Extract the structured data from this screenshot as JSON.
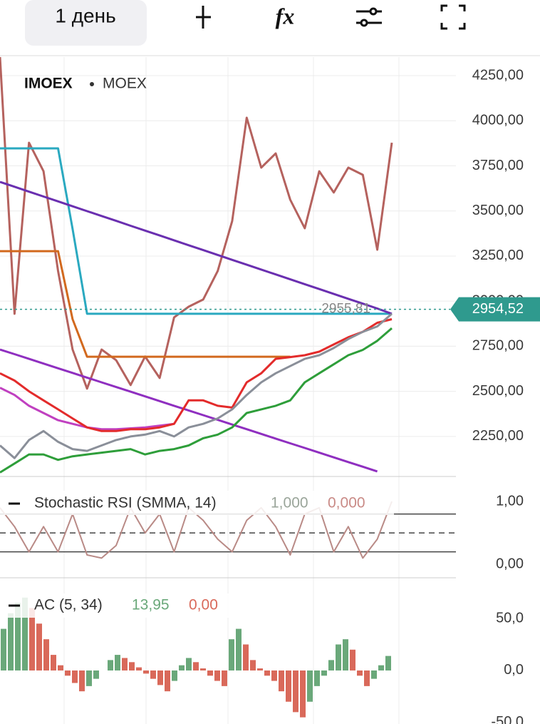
{
  "toolbar": {
    "timeframe": "1 день",
    "functions": "fx"
  },
  "chart_data": [
    {
      "type": "line",
      "title": "IMOEX",
      "subtitle": "MOEX",
      "ylim": [
        2028,
        4353
      ],
      "yticks": [
        {
          "value": 2250,
          "label": "2250,00"
        },
        {
          "value": 2500,
          "label": "2500,00"
        },
        {
          "value": 2750,
          "label": "2750,00"
        },
        {
          "value": 3000,
          "label": "3000,00"
        },
        {
          "value": 3250,
          "label": "3250,00"
        },
        {
          "value": 3500,
          "label": "3500,00"
        },
        {
          "value": 3750,
          "label": "3750,00"
        },
        {
          "value": 4000,
          "label": "4000,00"
        },
        {
          "value": 4250,
          "label": "4250,00"
        }
      ],
      "grid": true,
      "last_price": {
        "value": 2954.52,
        "label": "2954,52",
        "color": "#2f9a8e"
      },
      "marker_price": {
        "value": 2955.81,
        "label": "2955,81"
      },
      "series": [
        {
          "color": "#b5625e",
          "values": [
            4353,
            2930,
            3878,
            3720,
            3167,
            2732,
            2515,
            2732,
            2673,
            2535,
            2693,
            2574,
            2910,
            2969,
            3009,
            3167,
            3444,
            4017,
            3740,
            3819,
            3562,
            3404,
            3720,
            3602,
            3740,
            3700,
            3285,
            3878
          ]
        },
        {
          "color": "#2aa9c0",
          "values": [
            3847,
            3847,
            3847,
            3847,
            3847,
            3400,
            2930,
            2930,
            2930,
            2930,
            2930,
            2930,
            2930,
            2930,
            2930,
            2930,
            2930,
            2930,
            2930,
            2930,
            2930,
            2930,
            2930,
            2930,
            2930,
            2930,
            2930,
            2930
          ]
        },
        {
          "color": "#d2691e",
          "values": [
            3277,
            3277,
            3277,
            3277,
            3277,
            2900,
            2692,
            2692,
            2692,
            2692,
            2692,
            2692,
            2692,
            2692,
            2692,
            2692,
            2692,
            2692,
            2692,
            2692,
            2692,
            null,
            null,
            null,
            null,
            null,
            null,
            null
          ]
        },
        {
          "color": "#6a2fb0",
          "values": [
            3661,
            3634,
            3607,
            3580,
            3553,
            3526,
            3499,
            3472,
            3445,
            3418,
            3391,
            3364,
            3337,
            3310,
            3283,
            3256,
            3229,
            3202,
            3175,
            3148,
            3121,
            3094,
            3067,
            3040,
            3013,
            2986,
            2959,
            2930
          ]
        },
        {
          "color": "#8f2fc0",
          "values": [
            2732,
            2706,
            2680,
            2654,
            2628,
            2602,
            2576,
            2550,
            2524,
            2498,
            2472,
            2446,
            2420,
            2394,
            2368,
            2342,
            2316,
            2290,
            2264,
            2238,
            2212,
            2186,
            2160,
            2134,
            2108,
            2082,
            2056,
            null
          ]
        },
        {
          "color": "#c040c0",
          "values": [
            2520,
            2480,
            2420,
            2380,
            2340,
            2320,
            2300,
            2290,
            2290,
            2295,
            2300,
            2310,
            2320,
            null,
            null,
            null,
            null,
            null,
            null,
            null,
            null,
            null,
            null,
            null,
            null,
            null,
            null,
            null
          ]
        },
        {
          "color": "#e32b2b",
          "values": [
            2600,
            2560,
            2500,
            2450,
            2400,
            2350,
            2300,
            2280,
            2280,
            2290,
            2290,
            2300,
            2320,
            2450,
            2450,
            2420,
            2410,
            2550,
            2600,
            2680,
            2690,
            2700,
            2720,
            2760,
            2800,
            2830,
            2880,
            2900
          ]
        },
        {
          "color": "#8a8f99",
          "values": [
            2200,
            2130,
            2230,
            2280,
            2220,
            2180,
            2170,
            2200,
            2230,
            2250,
            2260,
            2280,
            2250,
            2300,
            2320,
            2350,
            2400,
            2480,
            2550,
            2600,
            2640,
            2680,
            2700,
            2740,
            2790,
            2830,
            2860,
            2930
          ]
        },
        {
          "color": "#2e9e3a",
          "values": [
            2050,
            2100,
            2150,
            2150,
            2120,
            2140,
            2150,
            2160,
            2170,
            2180,
            2150,
            2170,
            2180,
            2200,
            2240,
            2260,
            2300,
            2380,
            2400,
            2420,
            2450,
            2550,
            2600,
            2650,
            2700,
            2730,
            2780,
            2850
          ]
        }
      ]
    },
    {
      "type": "line",
      "title": "Stochastic RSI (SMMA, 14)",
      "readouts": [
        {
          "value": 1,
          "label": "1,000",
          "color": "#9aa59a"
        },
        {
          "value": 0,
          "label": "0,000",
          "color": "#c98a86"
        }
      ],
      "ylim": [
        -0.19,
        1.17
      ],
      "yticks": [
        {
          "value": 1,
          "label": "1,00"
        },
        {
          "value": 0,
          "label": "0,00"
        }
      ],
      "levels": [
        0.8,
        0.5,
        0.2
      ],
      "series": [
        {
          "color": "#b98a86",
          "values": [
            0.9,
            0.6,
            0.2,
            0.6,
            0.2,
            0.8,
            0.15,
            0.1,
            0.3,
            0.9,
            0.5,
            0.8,
            0.2,
            0.9,
            0.7,
            0.4,
            0.2,
            0.7,
            0.9,
            0.6,
            0.15,
            0.8,
            0.9,
            0.2,
            0.6,
            0.1,
            0.4,
            1.0
          ]
        }
      ]
    },
    {
      "type": "bar",
      "title": "AC (5, 34)",
      "readouts": [
        {
          "value": 13.95,
          "label": "13,95",
          "color": "#6aa87a"
        },
        {
          "value": 0,
          "label": "0,00",
          "color": "#d9695a"
        }
      ],
      "ylim": [
        -51.4,
        76.7
      ],
      "yticks": [
        {
          "value": 50,
          "label": "50,0"
        },
        {
          "value": 0,
          "label": "0,0"
        },
        {
          "value": -50,
          "label": "-50,0"
        }
      ],
      "up_color": "#6aa87a",
      "down_color": "#d9695a",
      "values": [
        40,
        55,
        65,
        70,
        60,
        45,
        30,
        15,
        5,
        -5,
        -12,
        -20,
        -15,
        -8,
        0,
        10,
        15,
        12,
        8,
        3,
        -3,
        -8,
        -14,
        -20,
        -10,
        5,
        12,
        8,
        2,
        -5,
        -10,
        -15,
        30,
        40,
        25,
        10,
        2,
        -5,
        -10,
        -20,
        -30,
        -40,
        -45,
        -30,
        -15,
        -5,
        10,
        25,
        30,
        20,
        -5,
        -15,
        -8,
        5,
        13.95
      ]
    }
  ]
}
